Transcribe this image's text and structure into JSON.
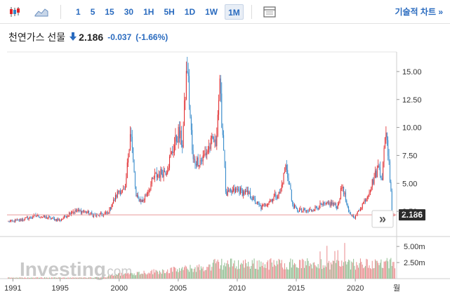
{
  "toolbar": {
    "timeframes": [
      "1",
      "5",
      "15",
      "30",
      "1H",
      "5H",
      "1D",
      "1W",
      "1M"
    ],
    "active_timeframe": "1M",
    "tech_chart_label": "기술적 차트 »"
  },
  "header": {
    "name": "천연가스 선물",
    "price": "2.186",
    "change": "-0.037",
    "change_pct": "(-1.66%)",
    "direction": "down"
  },
  "watermark": "Investing",
  "watermark_suffix": ".com",
  "nav_button": "»",
  "colors": {
    "up": "#e0262a",
    "down": "#2f86c9",
    "accent": "#2a6bbf",
    "price_line": "#e99a9a"
  },
  "chart_data": {
    "type": "candlestick",
    "title": "천연가스 선물",
    "x_ticks": [
      "1991",
      "1995",
      "2000",
      "2005",
      "2010",
      "2015",
      "2020",
      "월"
    ],
    "x_tick_values": [
      1991,
      1995,
      2000,
      2005,
      2010,
      2015,
      2020
    ],
    "xlim": [
      1990.5,
      2023.5
    ],
    "y_ticks": [
      "15.00",
      "12.50",
      "10.00",
      "7.50",
      "5.00",
      "2.50"
    ],
    "y_tick_values": [
      15,
      12.5,
      10,
      7.5,
      5,
      2.5
    ],
    "ylim": [
      0.5,
      16.5
    ],
    "last_price": 2.186,
    "last_price_label": "2.186",
    "volume_ticks": [
      "5.00m",
      "2.50m"
    ],
    "volume_tick_values": [
      5000000,
      2500000
    ],
    "price_series_yearly": [
      {
        "x": 1991,
        "y": 1.6
      },
      {
        "x": 1992,
        "y": 1.8
      },
      {
        "x": 1993,
        "y": 2.1
      },
      {
        "x": 1994,
        "y": 1.9
      },
      {
        "x": 1995,
        "y": 1.7
      },
      {
        "x": 1996,
        "y": 2.5
      },
      {
        "x": 1997,
        "y": 2.5
      },
      {
        "x": 1998,
        "y": 2.1
      },
      {
        "x": 1999,
        "y": 2.3
      },
      {
        "x": 2000,
        "y": 4.4
      },
      {
        "x": 2001,
        "y": 4.0
      },
      {
        "x": 2002,
        "y": 3.4
      },
      {
        "x": 2003,
        "y": 5.6
      },
      {
        "x": 2004,
        "y": 6.2
      },
      {
        "x": 2005,
        "y": 9.5
      },
      {
        "x": 2006,
        "y": 6.9
      },
      {
        "x": 2007,
        "y": 7.1
      },
      {
        "x": 2008,
        "y": 8.9
      },
      {
        "x": 2009,
        "y": 4.0
      },
      {
        "x": 2010,
        "y": 4.4
      },
      {
        "x": 2011,
        "y": 4.0
      },
      {
        "x": 2012,
        "y": 2.8
      },
      {
        "x": 2013,
        "y": 3.7
      },
      {
        "x": 2014,
        "y": 4.4
      },
      {
        "x": 2015,
        "y": 2.6
      },
      {
        "x": 2016,
        "y": 2.5
      },
      {
        "x": 2017,
        "y": 3.0
      },
      {
        "x": 2018,
        "y": 3.2
      },
      {
        "x": 2019,
        "y": 2.6
      },
      {
        "x": 2020,
        "y": 2.0
      },
      {
        "x": 2021,
        "y": 3.9
      },
      {
        "x": 2022,
        "y": 6.6
      },
      {
        "x": 2023,
        "y": 2.2
      }
    ],
    "peaks": [
      {
        "x": 2000.95,
        "y": 10.0
      },
      {
        "x": 2005.75,
        "y": 15.7
      },
      {
        "x": 2008.5,
        "y": 13.7
      },
      {
        "x": 2014.1,
        "y": 6.5
      },
      {
        "x": 2018.9,
        "y": 4.9
      },
      {
        "x": 2022.6,
        "y": 10.0
      }
    ]
  }
}
